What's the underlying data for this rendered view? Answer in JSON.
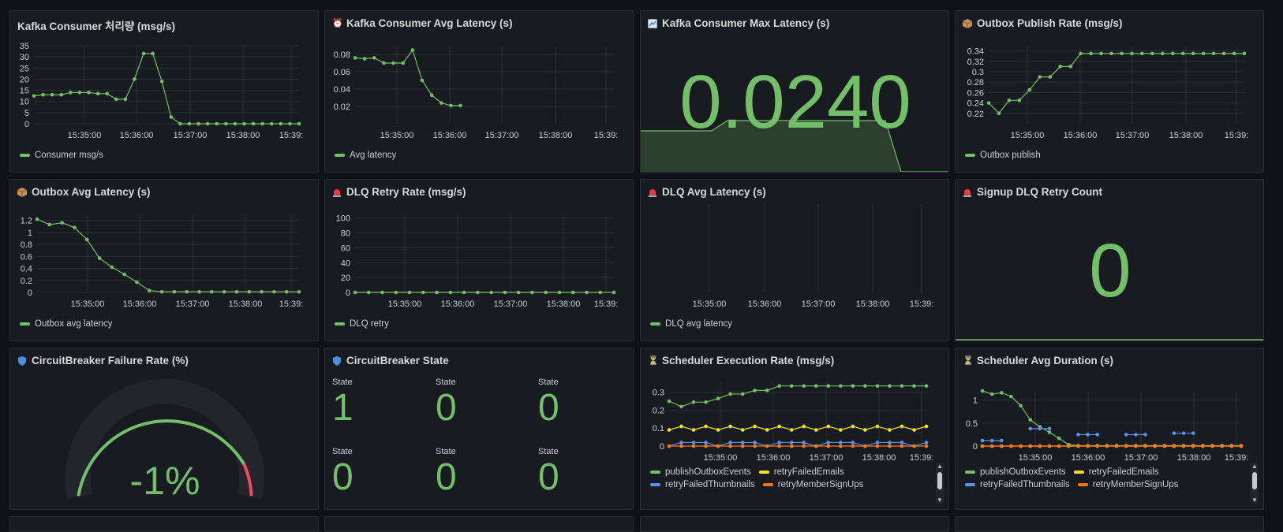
{
  "colors": {
    "green": "#73bf69",
    "yellow": "#fade2a",
    "blue": "#5794f2",
    "orange": "#ff780a",
    "red": "#f2495c",
    "grid": "#2c3035"
  },
  "time_ticks": [
    "15:35:00",
    "15:36:00",
    "15:37:00",
    "15:38:00",
    "15:39:"
  ],
  "panels": {
    "p1": {
      "title": "Kafka Consumer 처리량 (msg/s)",
      "icon": "",
      "chart_data": {
        "type": "line",
        "x": [
          "15:34:10",
          "15:34:20",
          "15:34:30",
          "15:34:40",
          "15:34:50",
          "15:35:00",
          "15:35:10",
          "15:35:20",
          "15:35:30",
          "15:35:40",
          "15:35:50",
          "15:36:00",
          "15:36:10",
          "15:36:20",
          "15:36:30",
          "15:36:40",
          "15:36:50",
          "15:37:00",
          "15:37:10",
          "15:37:20",
          "15:37:30",
          "15:37:40",
          "15:37:50",
          "15:38:00",
          "15:38:10",
          "15:38:20",
          "15:38:30",
          "15:38:40",
          "15:38:50",
          "15:39:00"
        ],
        "series": [
          {
            "name": "Consumer msg/s",
            "values": [
              12.5,
              13,
              13,
              13,
              14,
              14,
              14,
              13.5,
              13.5,
              11,
              11,
              20,
              31.5,
              31.5,
              19,
              3,
              0,
              0,
              0,
              0,
              0,
              0,
              0,
              0,
              0,
              0,
              0,
              0,
              0,
              0
            ]
          }
        ],
        "ylim": [
          0,
          35
        ],
        "yticks": [
          "35",
          "30",
          "25",
          "20",
          "15",
          "10",
          "5",
          "0"
        ]
      },
      "legend": [
        "Consumer msg/s"
      ]
    },
    "p2": {
      "title": "Kafka Consumer Avg Latency (s)",
      "icon": "alarm-clock-icon",
      "chart_data": {
        "type": "line",
        "series": [
          {
            "name": "Avg latency",
            "values": [
              0.076,
              0.075,
              0.076,
              0.07,
              0.07,
              0.07,
              0.085,
              0.05,
              0.033,
              0.024,
              0.021,
              0.021
            ]
          }
        ],
        "ylim": [
          0,
          0.09
        ],
        "yticks": [
          "0.08",
          "0.06",
          "0.04",
          "0.02"
        ]
      },
      "legend": [
        "Avg latency"
      ]
    },
    "p3": {
      "title": "Kafka Consumer Max Latency (s)",
      "icon": "chart-icon",
      "value": "0.0240"
    },
    "p4": {
      "title": "Outbox Publish Rate (msg/s)",
      "icon": "package-icon",
      "chart_data": {
        "type": "line",
        "series": [
          {
            "name": "Outbox publish",
            "values": [
              0.24,
              0.22,
              0.245,
              0.245,
              0.265,
              0.29,
              0.29,
              0.31,
              0.31,
              0.335,
              0.335,
              0.335,
              0.335,
              0.335,
              0.335,
              0.335,
              0.335,
              0.335,
              0.335,
              0.335,
              0.335,
              0.335,
              0.335,
              0.335,
              0.335,
              0.335
            ]
          }
        ],
        "ylim": [
          0.2,
          0.35
        ],
        "yticks": [
          "0.34",
          "0.32",
          "0.3",
          "0.28",
          "0.26",
          "0.24",
          "0.22"
        ]
      },
      "legend": [
        "Outbox publish"
      ]
    },
    "p5": {
      "title": "Outbox Avg Latency (s)",
      "icon": "package-icon",
      "chart_data": {
        "type": "line",
        "series": [
          {
            "name": "Outbox avg latency",
            "values": [
              1.22,
              1.13,
              1.16,
              1.08,
              0.88,
              0.57,
              0.42,
              0.3,
              0.17,
              0.03,
              0.01,
              0.01,
              0.01,
              0.01,
              0.01,
              0.01,
              0.01,
              0.01,
              0.01,
              0.01,
              0.01,
              0.01
            ]
          }
        ],
        "ylim": [
          0,
          1.3
        ],
        "yticks": [
          "1.2",
          "1",
          "0.8",
          "0.6",
          "0.4",
          "0.2",
          "0"
        ]
      },
      "legend": [
        "Outbox avg latency"
      ]
    },
    "p6": {
      "title": "DLQ Retry Rate (msg/s)",
      "icon": "siren-icon",
      "chart_data": {
        "type": "line",
        "series": [
          {
            "name": "DLQ retry",
            "values": [
              0,
              0,
              0,
              0,
              0,
              0,
              0,
              0,
              0,
              0,
              0,
              0,
              0,
              0,
              0,
              0,
              0,
              0,
              0,
              0
            ]
          }
        ],
        "ylim": [
          0,
          105
        ],
        "yticks": [
          "100",
          "80",
          "60",
          "40",
          "20",
          "0"
        ]
      },
      "legend": [
        "DLQ retry"
      ]
    },
    "p7": {
      "title": "DLQ Avg Latency (s)",
      "icon": "siren-icon",
      "chart_data": {
        "type": "line",
        "series": [
          {
            "name": "DLQ avg latency",
            "values": []
          }
        ]
      },
      "legend": [
        "DLQ avg latency"
      ]
    },
    "p8": {
      "title": "Signup DLQ Retry Count",
      "icon": "siren-icon",
      "value": "0"
    },
    "p9": {
      "title": "CircuitBreaker Failure Rate (%)",
      "icon": "shield-icon",
      "value": "-1%"
    },
    "p10": {
      "title": "CircuitBreaker State",
      "icon": "shield-icon",
      "cells": [
        {
          "label": "State",
          "value": "1"
        },
        {
          "label": "State",
          "value": "0"
        },
        {
          "label": "State",
          "value": "0"
        },
        {
          "label": "State",
          "value": "0"
        },
        {
          "label": "State",
          "value": "0"
        },
        {
          "label": "State",
          "value": "0"
        }
      ]
    },
    "p11": {
      "title": "Scheduler Execution Rate (msg/s)",
      "icon": "hourglass-icon",
      "chart_data": {
        "type": "line",
        "series": [
          {
            "name": "publishOutboxEvents",
            "values": [
              0.25,
              0.22,
              0.245,
              0.245,
              0.265,
              0.29,
              0.29,
              0.31,
              0.31,
              0.335,
              0.335,
              0.335,
              0.335,
              0.335,
              0.335,
              0.335,
              0.335,
              0.335,
              0.335,
              0.335,
              0.335,
              0.335
            ]
          },
          {
            "name": "retryFailedEmails",
            "values": [
              0.09,
              0.11,
              0.09,
              0.11,
              0.09,
              0.11,
              0.09,
              0.11,
              0.09,
              0.11,
              0.09,
              0.11,
              0.09,
              0.11,
              0.09,
              0.11,
              0.09,
              0.11,
              0.09,
              0.11,
              0.09,
              0.11
            ]
          },
          {
            "name": "retryFailedThumbnails",
            "values": [
              0,
              0.02,
              0.02,
              0.02,
              0,
              0.02,
              0.02,
              0.02,
              0,
              0.02,
              0.02,
              0.02,
              0,
              0.02,
              0.02,
              0.02,
              0,
              0.02,
              0.02,
              0.02,
              0,
              0.02
            ]
          },
          {
            "name": "retryMemberSignUps",
            "values": [
              0,
              0,
              0,
              0,
              0,
              0,
              0,
              0,
              0,
              0,
              0,
              0,
              0,
              0,
              0,
              0,
              0,
              0,
              0,
              0,
              0,
              0
            ]
          }
        ],
        "ylim": [
          0,
          0.36
        ],
        "yticks": [
          "0.3",
          "0.2",
          "0.1",
          "0"
        ]
      },
      "legend": [
        "publishOutboxEvents",
        "retryFailedEmails",
        "retryFailedThumbnails",
        "retryMemberSignUps"
      ]
    },
    "p12": {
      "title": "Scheduler Avg Duration (s)",
      "icon": "hourglass-icon",
      "chart_data": {
        "type": "line",
        "series": [
          {
            "name": "publishOutboxEvents",
            "values": [
              1.2,
              1.13,
              1.16,
              1.08,
              0.88,
              0.57,
              0.42,
              0.3,
              0.17,
              0.03,
              0.01,
              0.01,
              0.01,
              0.01,
              0.01,
              0.01,
              0.01,
              0.01,
              0.01,
              0.01,
              0.01,
              0.01,
              0.01,
              0.01,
              0.01,
              0.01,
              0.01,
              0.01
            ]
          },
          {
            "name": "retryFailedEmails",
            "values": [
              0,
              0,
              0,
              0,
              0,
              0,
              0,
              0,
              0,
              0,
              0,
              0,
              0,
              0,
              0,
              0,
              0,
              0,
              0,
              0,
              0,
              0,
              0,
              0,
              0,
              0,
              0,
              0
            ]
          },
          {
            "name": "retryFailedThumbnails",
            "values": [
              0.12,
              0.12,
              0.12,
              null,
              null,
              0.38,
              0.38,
              0.38,
              null,
              null,
              0.25,
              0.25,
              0.25,
              null,
              null,
              0.25,
              0.25,
              0.25,
              null,
              null,
              0.28,
              0.28,
              0.28,
              null,
              null,
              null,
              null,
              null
            ]
          },
          {
            "name": "retryMemberSignUps",
            "values": [
              0,
              0,
              0,
              0,
              0,
              0,
              0,
              0,
              0,
              0,
              0,
              0,
              0,
              0,
              0,
              0,
              0,
              0,
              0,
              0,
              0,
              0,
              0,
              0,
              0,
              0,
              0,
              0
            ]
          }
        ],
        "ylim": [
          0,
          1.2
        ],
        "yticks": [
          "1",
          "0.5",
          "0"
        ]
      },
      "legend": [
        "publishOutboxEvents",
        "retryFailedEmails",
        "retryFailedThumbnails",
        "retryMemberSignUps"
      ]
    }
  }
}
